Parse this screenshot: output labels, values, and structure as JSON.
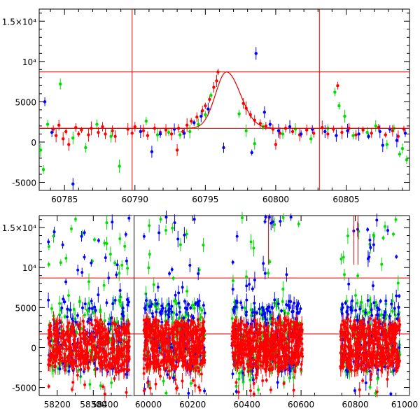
{
  "chart_data": [
    {
      "type": "scatter",
      "panel": "top",
      "title": "",
      "xlabel": "",
      "ylabel": "",
      "xlim": [
        60783.2,
        60809.5
      ],
      "ylim": [
        -6000,
        16500
      ],
      "x_ticks": [
        60785,
        60790,
        60795,
        60800,
        60805
      ],
      "y_ticks": [
        {
          "value": 15000,
          "label": "1.5×10⁴"
        },
        {
          "value": 10000,
          "label": "10⁴"
        },
        {
          "value": 5000,
          "label": "5000"
        },
        {
          "value": 0,
          "label": "0"
        },
        {
          "value": -5000,
          "label": "-5000"
        }
      ],
      "grid": false,
      "legend": "none",
      "reference_lines": {
        "horizontal": [
          8700,
          1700
        ],
        "vertical": [
          60789.8,
          60803.1
        ]
      },
      "model_curve": {
        "color": "#e00000",
        "baseline": 1700,
        "peak_x": 60796.5,
        "peak_y": 8700,
        "rise_width": 1.1,
        "fall_width": 1.4
      },
      "series": [
        {
          "color": "#ff0000",
          "points": [
            [
              60784.2,
              1600
            ],
            [
              60784.4,
              800
            ],
            [
              60784.6,
              2100
            ],
            [
              60784.9,
              400
            ],
            [
              60785.1,
              1300
            ],
            [
              60785.3,
              -300
            ],
            [
              60785.8,
              1800
            ],
            [
              60786.0,
              1000
            ],
            [
              60786.2,
              1500
            ],
            [
              60786.7,
              900
            ],
            [
              60786.9,
              1700
            ],
            [
              60787.4,
              1200
            ],
            [
              60787.7,
              1900
            ],
            [
              60787.9,
              1000
            ],
            [
              60788.4,
              1400
            ],
            [
              60788.6,
              700
            ],
            [
              60789.5,
              1600
            ],
            [
              60789.8,
              1100
            ],
            [
              60790.0,
              1900
            ],
            [
              60790.6,
              1400
            ],
            [
              60790.9,
              800
            ],
            [
              60791.4,
              1700
            ],
            [
              60791.8,
              1200
            ],
            [
              60792.2,
              1500
            ],
            [
              60792.6,
              1000
            ],
            [
              60793.1,
              1700
            ],
            [
              60793.4,
              1300
            ],
            [
              60793.7,
              2100
            ],
            [
              60794.0,
              2600
            ],
            [
              60794.4,
              3100
            ],
            [
              60794.8,
              3900
            ],
            [
              60795.0,
              4500
            ],
            [
              60795.3,
              5300
            ],
            [
              60795.6,
              6800
            ],
            [
              60795.8,
              7600
            ],
            [
              60795.9,
              8700
            ],
            [
              60797.7,
              4800
            ],
            [
              60797.9,
              4200
            ],
            [
              60798.2,
              3400
            ],
            [
              60798.5,
              2700
            ],
            [
              60798.9,
              2300
            ],
            [
              60799.3,
              2000
            ],
            [
              60799.8,
              1600
            ],
            [
              60800.3,
              1100
            ],
            [
              60800.7,
              1700
            ],
            [
              60801.2,
              1300
            ],
            [
              60801.7,
              900
            ],
            [
              60802.2,
              1500
            ],
            [
              60802.7,
              1100
            ],
            [
              60803.3,
              1800
            ],
            [
              60803.7,
              1000
            ],
            [
              60804.1,
              1600
            ],
            [
              60804.4,
              7000
            ],
            [
              60804.7,
              1200
            ],
            [
              60805.2,
              1700
            ],
            [
              60805.7,
              900
            ],
            [
              60806.2,
              1500
            ],
            [
              60806.8,
              1100
            ],
            [
              60807.3,
              1800
            ],
            [
              60807.8,
              900
            ],
            [
              60808.3,
              1400
            ],
            [
              60808.7,
              700
            ],
            [
              60809.1,
              1600
            ],
            [
              60800.0,
              -300
            ],
            [
              60793.0,
              -1000
            ]
          ]
        },
        {
          "color": "#00dd00",
          "points": [
            [
              60783.3,
              -1000
            ],
            [
              60783.5,
              -3400
            ],
            [
              60783.8,
              2200
            ],
            [
              60784.7,
              7200
            ],
            [
              60785.6,
              500
            ],
            [
              60786.5,
              -700
            ],
            [
              60787.3,
              2200
            ],
            [
              60788.3,
              700
            ],
            [
              60788.9,
              -3000
            ],
            [
              60790.8,
              2600
            ],
            [
              60791.6,
              900
            ],
            [
              60792.4,
              1200
            ],
            [
              60793.2,
              900
            ],
            [
              60793.9,
              1300
            ],
            [
              60794.5,
              2200
            ],
            [
              60795.0,
              3400
            ],
            [
              60795.4,
              5800
            ],
            [
              60797.4,
              3500
            ],
            [
              60797.9,
              1400
            ],
            [
              60798.5,
              -200
            ],
            [
              60799.1,
              1900
            ],
            [
              60800.5,
              1000
            ],
            [
              60801.4,
              1600
            ],
            [
              60802.5,
              400
            ],
            [
              60803.7,
              1700
            ],
            [
              60804.2,
              6200
            ],
            [
              60804.5,
              4500
            ],
            [
              60804.9,
              3200
            ],
            [
              60805.5,
              800
            ],
            [
              60806.5,
              1200
            ],
            [
              60807.1,
              2000
            ],
            [
              60807.9,
              -300
            ],
            [
              60808.4,
              1700
            ],
            [
              60809.0,
              -800
            ],
            [
              60809.3,
              -2200
            ],
            [
              60808.8,
              -1500
            ]
          ]
        },
        {
          "color": "#0000ff",
          "points": [
            [
              60783.6,
              5000
            ],
            [
              60784.1,
              1200
            ],
            [
              60785.6,
              -5200
            ],
            [
              60790.4,
              1300
            ],
            [
              60791.2,
              -1200
            ],
            [
              60791.8,
              1000
            ],
            [
              60792.8,
              1600
            ],
            [
              60793.5,
              1100
            ],
            [
              60794.2,
              2400
            ],
            [
              60794.7,
              3200
            ],
            [
              60795.2,
              4100
            ],
            [
              60796.3,
              -700
            ],
            [
              60798.6,
              11000
            ],
            [
              60798.3,
              -1300
            ],
            [
              60799.2,
              3700
            ],
            [
              60799.6,
              2200
            ],
            [
              60800.2,
              1400
            ],
            [
              60801.0,
              1900
            ],
            [
              60801.8,
              1000
            ],
            [
              60802.6,
              1600
            ],
            [
              60803.5,
              1300
            ],
            [
              60804.3,
              800
            ],
            [
              60805.1,
              1400
            ],
            [
              60805.9,
              1000
            ],
            [
              60806.6,
              700
            ],
            [
              60807.4,
              1300
            ],
            [
              60808.1,
              1600
            ],
            [
              60808.6,
              200
            ],
            [
              60809.2,
              1100
            ],
            [
              60807.6,
              -400
            ]
          ]
        }
      ]
    },
    {
      "type": "scatter",
      "panel": "bottom",
      "title": "",
      "xlabel": "",
      "ylabel": "",
      "ylim": [
        -6000,
        16500
      ],
      "y_ticks": [
        {
          "value": 15000,
          "label": "1.5×10⁴"
        },
        {
          "value": 10000,
          "label": "10⁴"
        },
        {
          "value": 5000,
          "label": "5000"
        },
        {
          "value": 0,
          "label": "0"
        },
        {
          "value": -5000,
          "label": "-5000"
        }
      ],
      "grid": false,
      "legend": "none",
      "reference_lines": {
        "horizontal": [
          8700,
          1700
        ],
        "vertical": [
          60480,
          60795,
          60810
        ]
      },
      "x_segments": [
        {
          "xlim": [
            58150,
            58410
          ],
          "ticks": [
            58200,
            58300
          ],
          "edge_label": "58400",
          "clusters": [
            [
              58175,
              58400
            ]
          ]
        },
        {
          "xlim": [
            59980,
            61000
          ],
          "ticks": [
            60200,
            60400,
            60600,
            60800
          ],
          "edge_labels": [
            "60000",
            "61000"
          ],
          "clusters": [
            [
              60020,
              60245
            ],
            [
              60345,
              60605
            ],
            [
              60745,
              60965
            ]
          ]
        }
      ],
      "series_colors": [
        "#00dd00",
        "#0000ff",
        "#ff0000"
      ],
      "scatter_spread": {
        "core_y_range": [
          -2500,
          4000
        ],
        "outlier_y_range": [
          -6000,
          16500
        ]
      }
    }
  ]
}
